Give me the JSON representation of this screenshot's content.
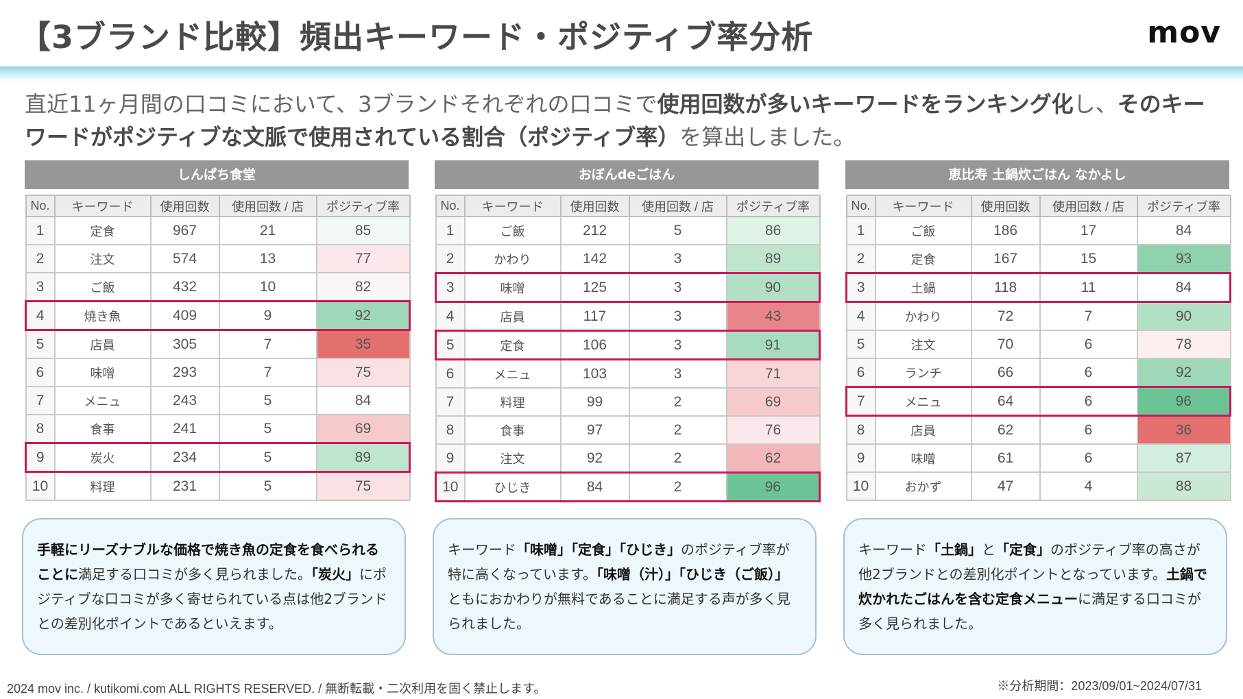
{
  "header": {
    "title": "【3ブランド比較】頻出キーワード・ポジティブ率分析",
    "logo": "mov"
  },
  "intro": {
    "p1": "直近11ヶ月間の口コミにおいて、3ブランドそれぞれの口コミで",
    "b1": "使用回数が多いキーワードをランキング化",
    "p2": "し、",
    "b2": "そのキーワードがポジティブな文脈で使用されている割合（ポジティブ率）",
    "p3": "を算出しました。"
  },
  "columns": [
    "No.",
    "キーワード",
    "使用回数",
    "使用回数 / 店",
    "ポジティブ率"
  ],
  "tables": [
    {
      "title": "しんぱち食堂",
      "rows": [
        {
          "no": "1",
          "keyword": "定食",
          "count": "967",
          "per_store": "21",
          "rate": "85",
          "bg": "#f2f9f5",
          "highlight": false
        },
        {
          "no": "2",
          "keyword": "注文",
          "count": "574",
          "per_store": "13",
          "rate": "77",
          "bg": "#fce8ea",
          "highlight": false
        },
        {
          "no": "3",
          "keyword": "ご飯",
          "count": "432",
          "per_store": "10",
          "rate": "82",
          "bg": "#fdf6f6",
          "highlight": false
        },
        {
          "no": "4",
          "keyword": "焼き魚",
          "count": "409",
          "per_store": "9",
          "rate": "92",
          "bg": "#9fd8b9",
          "highlight": true
        },
        {
          "no": "5",
          "keyword": "店員",
          "count": "305",
          "per_store": "7",
          "rate": "35",
          "bg": "#e36f6f",
          "highlight": false
        },
        {
          "no": "6",
          "keyword": "味噌",
          "count": "293",
          "per_store": "7",
          "rate": "75",
          "bg": "#fbe1e3",
          "highlight": false
        },
        {
          "no": "7",
          "keyword": "メニュ",
          "count": "243",
          "per_store": "5",
          "rate": "84",
          "bg": "#ffffff",
          "highlight": false
        },
        {
          "no": "8",
          "keyword": "食事",
          "count": "241",
          "per_store": "5",
          "rate": "69",
          "bg": "#f6caca",
          "highlight": false
        },
        {
          "no": "9",
          "keyword": "炭火",
          "count": "234",
          "per_store": "5",
          "rate": "89",
          "bg": "#bfe5cf",
          "highlight": true
        },
        {
          "no": "10",
          "keyword": "料理",
          "count": "231",
          "per_store": "5",
          "rate": "75",
          "bg": "#fbe1e3",
          "highlight": false
        }
      ]
    },
    {
      "title": "おぼんdeごはん",
      "rows": [
        {
          "no": "1",
          "keyword": "ご飯",
          "count": "212",
          "per_store": "5",
          "rate": "86",
          "bg": "#dff2e6",
          "highlight": false
        },
        {
          "no": "2",
          "keyword": "かわり",
          "count": "142",
          "per_store": "3",
          "rate": "89",
          "bg": "#bfe5cf",
          "highlight": false
        },
        {
          "no": "3",
          "keyword": "味噌",
          "count": "125",
          "per_store": "3",
          "rate": "90",
          "bg": "#b2e0c6",
          "highlight": true
        },
        {
          "no": "4",
          "keyword": "店員",
          "count": "117",
          "per_store": "3",
          "rate": "43",
          "bg": "#e9858a",
          "highlight": false
        },
        {
          "no": "5",
          "keyword": "定食",
          "count": "106",
          "per_store": "3",
          "rate": "91",
          "bg": "#a8dcbf",
          "highlight": true
        },
        {
          "no": "6",
          "keyword": "メニュ",
          "count": "103",
          "per_store": "3",
          "rate": "71",
          "bg": "#f8d6d8",
          "highlight": false
        },
        {
          "no": "7",
          "keyword": "料理",
          "count": "99",
          "per_store": "2",
          "rate": "69",
          "bg": "#f6caca",
          "highlight": false
        },
        {
          "no": "8",
          "keyword": "食事",
          "count": "97",
          "per_store": "2",
          "rate": "76",
          "bg": "#fce8ea",
          "highlight": false
        },
        {
          "no": "9",
          "keyword": "注文",
          "count": "92",
          "per_store": "2",
          "rate": "62",
          "bg": "#f2b7b8",
          "highlight": false
        },
        {
          "no": "10",
          "keyword": "ひじき",
          "count": "84",
          "per_store": "2",
          "rate": "96",
          "bg": "#6cc496",
          "highlight": true
        }
      ]
    },
    {
      "title": "恵比寿 土鍋炊ごはん なかよし",
      "rows": [
        {
          "no": "1",
          "keyword": "ご飯",
          "count": "186",
          "per_store": "17",
          "rate": "84",
          "bg": "#ffffff",
          "highlight": false
        },
        {
          "no": "2",
          "keyword": "定食",
          "count": "167",
          "per_store": "15",
          "rate": "93",
          "bg": "#8fd1ad",
          "highlight": false
        },
        {
          "no": "3",
          "keyword": "土鍋",
          "count": "118",
          "per_store": "11",
          "rate": "84",
          "bg": "#ffffff",
          "highlight": true
        },
        {
          "no": "4",
          "keyword": "かわり",
          "count": "72",
          "per_store": "7",
          "rate": "90",
          "bg": "#b2e0c6",
          "highlight": false
        },
        {
          "no": "5",
          "keyword": "注文",
          "count": "70",
          "per_store": "6",
          "rate": "78",
          "bg": "#fdeeee",
          "highlight": false
        },
        {
          "no": "6",
          "keyword": "ランチ",
          "count": "66",
          "per_store": "6",
          "rate": "92",
          "bg": "#9fd8b9",
          "highlight": false
        },
        {
          "no": "7",
          "keyword": "メニュ",
          "count": "64",
          "per_store": "6",
          "rate": "96",
          "bg": "#6cc496",
          "highlight": true
        },
        {
          "no": "8",
          "keyword": "店員",
          "count": "62",
          "per_store": "6",
          "rate": "36",
          "bg": "#e36f6f",
          "highlight": false
        },
        {
          "no": "9",
          "keyword": "味噌",
          "count": "61",
          "per_store": "6",
          "rate": "87",
          "bg": "#d3eedf",
          "highlight": false
        },
        {
          "no": "10",
          "keyword": "おかず",
          "count": "47",
          "per_store": "4",
          "rate": "88",
          "bg": "#c9e9d6",
          "highlight": false
        }
      ]
    }
  ],
  "notes": [
    {
      "parts": [
        {
          "t": "手軽にリーズナブルな価格で焼き魚の定食を食べられることに",
          "b": true
        },
        {
          "t": "満足する口コミが多く見られました。",
          "b": false
        },
        {
          "t": "「炭火」",
          "b": true
        },
        {
          "t": "にポジティブな口コミが多く寄せられている点は他2ブランドとの差別化ポイントであるといえます。",
          "b": false
        }
      ]
    },
    {
      "parts": [
        {
          "t": "キーワード",
          "b": false
        },
        {
          "t": "「味噌」「定食」「ひじき」",
          "b": true
        },
        {
          "t": "のポジティブ率が特に高くなっています。",
          "b": false
        },
        {
          "t": "「味噌（汁）」「ひじき（ご飯）」",
          "b": true
        },
        {
          "t": "ともにおかわりが無料であることに満足する声が多く見られました。",
          "b": false
        }
      ]
    },
    {
      "parts": [
        {
          "t": "キーワード",
          "b": false
        },
        {
          "t": "「土鍋」",
          "b": true
        },
        {
          "t": "と",
          "b": false
        },
        {
          "t": "「定食」",
          "b": true
        },
        {
          "t": "のポジティブ率の高さが他2ブランドとの差別化ポイントとなっています。",
          "b": false
        },
        {
          "t": "土鍋で炊かれたごはんを含む定食メニュー",
          "b": true
        },
        {
          "t": "に満足する口コミが多く見られました。",
          "b": false
        }
      ]
    }
  ],
  "footer": {
    "copyright": "2024 mov inc. / kutikomi.com ALL RIGHTS RESERVED. / 無断転載・二次利用を固く禁止します。",
    "period": "※分析期間：2023/09/01~2024/07/31"
  }
}
